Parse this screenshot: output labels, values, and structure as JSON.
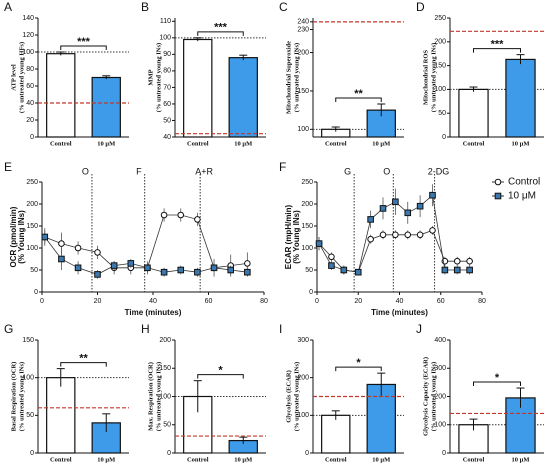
{
  "chart_data": [
    {
      "type": "bar",
      "letter": "A",
      "ylabel": [
        "ATP level",
        "(% untreated young HFs)"
      ],
      "categories": [
        "Control",
        "10 μM"
      ],
      "values": [
        98,
        70
      ],
      "errors": [
        2,
        2
      ],
      "colors": [
        "#ffffff",
        "#3d9be9"
      ],
      "ylim": [
        0,
        140
      ],
      "yticks": [
        0,
        20,
        40,
        60,
        80,
        100,
        120,
        140
      ],
      "ref_line": 100,
      "red_line": 40,
      "significance": "***"
    },
    {
      "type": "bar",
      "letter": "B",
      "ylabel": [
        "MMP",
        "(% untreated young INs)"
      ],
      "categories": [
        "Control",
        "10 μM"
      ],
      "values": [
        99,
        88
      ],
      "errors": [
        1,
        1.5
      ],
      "colors": [
        "#ffffff",
        "#3d9be9"
      ],
      "ylim": [
        40,
        112
      ],
      "yticks": [
        40,
        50,
        60,
        70,
        80,
        90,
        100,
        110
      ],
      "ref_line": 100,
      "red_line": 42,
      "significance": "***"
    },
    {
      "type": "bar",
      "letter": "C",
      "ylabel": [
        "Mitochondrial Superoxide",
        "(% untreated young INs)"
      ],
      "categories": [
        "Control",
        "10 μM"
      ],
      "values": [
        100,
        125
      ],
      "errors": [
        3,
        8
      ],
      "colors": [
        "#ffffff",
        "#3d9be9"
      ],
      "ylim": [
        90,
        245
      ],
      "yticks": [
        100,
        150,
        200,
        230,
        240
      ],
      "ref_line": 100,
      "red_line": 240,
      "significance": "**"
    },
    {
      "type": "bar",
      "letter": "D",
      "ylabel": [
        "Mitochondrial ROS",
        "(% untreated young INs)"
      ],
      "categories": [
        "Control",
        "10 μM"
      ],
      "values": [
        100,
        163
      ],
      "errors": [
        5,
        10
      ],
      "colors": [
        "#ffffff",
        "#3d9be9"
      ],
      "ylim": [
        0,
        250
      ],
      "yticks": [
        0,
        50,
        100,
        150,
        200,
        250
      ],
      "ref_line": 100,
      "red_line": 222,
      "significance": "***"
    },
    {
      "type": "line",
      "letter": "E",
      "ylabel": [
        "OCR (pmol/min)",
        "(% Young INs)"
      ],
      "xlabel": "Time (minutes)",
      "x": [
        1,
        7,
        13,
        20,
        26,
        32,
        38,
        44,
        50,
        56,
        62,
        68,
        74
      ],
      "series": [
        {
          "name": "Control",
          "color": "#ffffff",
          "values": [
            125,
            110,
            100,
            90,
            55,
            55,
            55,
            175,
            175,
            165,
            55,
            60,
            65
          ],
          "errors": [
            20,
            25,
            15,
            15,
            15,
            15,
            15,
            15,
            15,
            15,
            20,
            25,
            25
          ]
        },
        {
          "name": "10 μM",
          "color": "#3b78b0",
          "values": [
            125,
            75,
            55,
            40,
            60,
            65,
            55,
            45,
            50,
            45,
            55,
            50,
            45
          ],
          "errors": [
            15,
            25,
            15,
            10,
            10,
            10,
            10,
            10,
            10,
            10,
            10,
            10,
            10
          ]
        }
      ],
      "xlim": [
        0,
        80
      ],
      "xticks": [
        0,
        20,
        40,
        60,
        80
      ],
      "ylim": [
        0,
        250
      ],
      "yticks": [
        0,
        50,
        100,
        150,
        200,
        250
      ],
      "events": [
        {
          "x": 18,
          "label": "O"
        },
        {
          "x": 37,
          "label": "F"
        },
        {
          "x": 57,
          "label": "A+R"
        }
      ]
    },
    {
      "type": "line",
      "letter": "F",
      "ylabel": [
        "ECAR (mpH/min)",
        "(% Young INs)"
      ],
      "xlabel": "Time (minutes)",
      "x": [
        1,
        7,
        13,
        20,
        26,
        32,
        38,
        44,
        50,
        56,
        62,
        68,
        74
      ],
      "series": [
        {
          "name": "Control",
          "color": "#ffffff",
          "values": [
            110,
            80,
            50,
            45,
            120,
            130,
            130,
            130,
            130,
            140,
            70,
            70,
            70
          ],
          "errors": [
            15,
            10,
            10,
            5,
            10,
            10,
            10,
            10,
            10,
            10,
            10,
            10,
            10
          ]
        },
        {
          "name": "10 μM",
          "color": "#3b78b0",
          "values": [
            110,
            60,
            50,
            45,
            165,
            190,
            205,
            180,
            195,
            220,
            50,
            50,
            50
          ],
          "errors": [
            15,
            10,
            10,
            5,
            20,
            25,
            30,
            25,
            25,
            25,
            10,
            10,
            10
          ]
        }
      ],
      "xlim": [
        0,
        80
      ],
      "xticks": [
        0,
        20,
        40,
        60,
        80
      ],
      "ylim": [
        0,
        250
      ],
      "yticks": [
        0,
        50,
        100,
        150,
        200,
        250
      ],
      "events": [
        {
          "x": 18,
          "label": "G"
        },
        {
          "x": 37,
          "label": "O"
        },
        {
          "x": 57,
          "label": "2-DG"
        }
      ]
    },
    {
      "type": "bar",
      "letter": "G",
      "ylabel": [
        "Basal Respiration (OCR)",
        "(% untreated young INs)"
      ],
      "categories": [
        "Control",
        "10 μM"
      ],
      "values": [
        100,
        40
      ],
      "errors": [
        12,
        12
      ],
      "colors": [
        "#ffffff",
        "#3d9be9"
      ],
      "ylim": [
        0,
        150
      ],
      "yticks": [
        0,
        50,
        100,
        150
      ],
      "ref_line": 100,
      "red_line": 60,
      "significance": "**"
    },
    {
      "type": "bar",
      "letter": "H",
      "ylabel": [
        "Max. Respiration (OCR)",
        "(% untreated young INs)"
      ],
      "categories": [
        "Control",
        "10 μM"
      ],
      "values": [
        100,
        22
      ],
      "errors": [
        28,
        6
      ],
      "colors": [
        "#ffffff",
        "#3d9be9"
      ],
      "ylim": [
        0,
        200
      ],
      "yticks": [
        0,
        50,
        100,
        150,
        200
      ],
      "ref_line": 100,
      "red_line": 30,
      "significance": "*"
    },
    {
      "type": "bar",
      "letter": "I",
      "ylabel": [
        "Glycolysis (ECAR)",
        "(% untreated young INs)"
      ],
      "categories": [
        "Control",
        "10 μM"
      ],
      "values": [
        100,
        182
      ],
      "errors": [
        12,
        30
      ],
      "colors": [
        "#ffffff",
        "#3d9be9"
      ],
      "ylim": [
        0,
        300
      ],
      "yticks": [
        0,
        100,
        200,
        300
      ],
      "ref_line": 100,
      "red_line": 150,
      "significance": "*"
    },
    {
      "type": "bar",
      "letter": "J",
      "ylabel": [
        "Glycolysis Capacity (ECAR)",
        "(% untreated young INs)"
      ],
      "categories": [
        "Control",
        "10 μM"
      ],
      "values": [
        100,
        195
      ],
      "errors": [
        20,
        35
      ],
      "colors": [
        "#ffffff",
        "#3d9be9"
      ],
      "ylim": [
        0,
        400
      ],
      "yticks": [
        0,
        100,
        200,
        300,
        400
      ],
      "ref_line": 100,
      "red_line": 140,
      "significance": "*"
    }
  ]
}
